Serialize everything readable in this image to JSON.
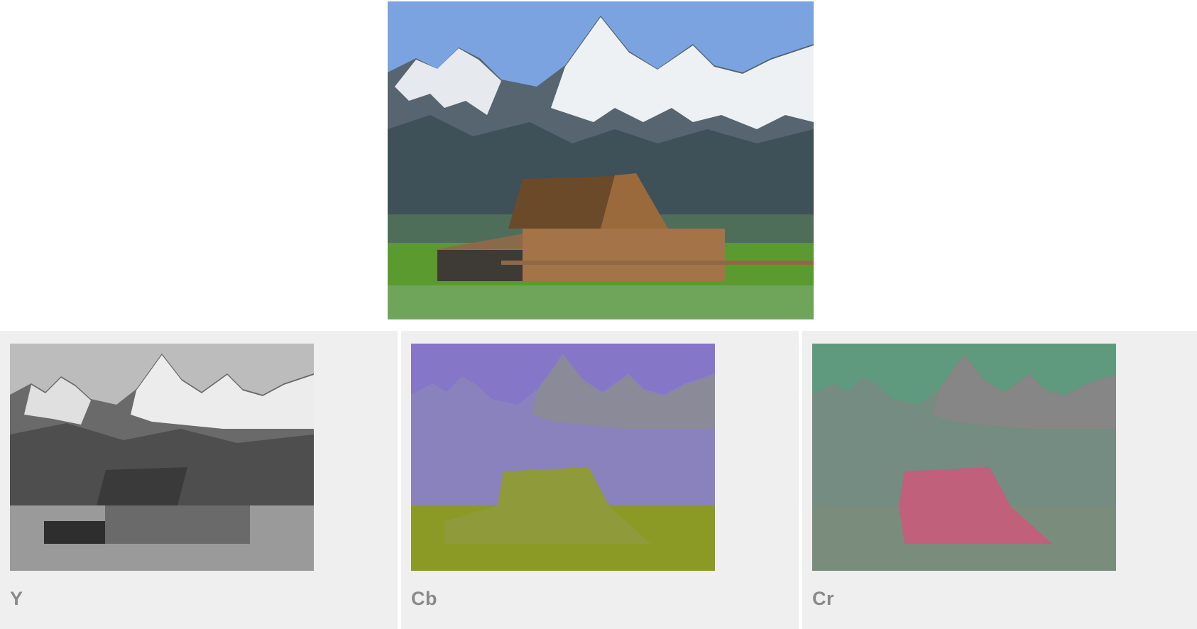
{
  "main_image": {
    "icon": "barn-mountain-photo",
    "colors": {
      "sky": "#7aa3e0",
      "mountain": "#4a5a64",
      "snow": "#e8ecef",
      "grass": "#5b9a2e",
      "barn": "#8a5a34"
    }
  },
  "channels": [
    {
      "label": "Y",
      "tint": "grayscale",
      "colors": {
        "sky": "#bcbcbc",
        "mountain": "#5a5a5a",
        "snow": "#ececec",
        "barn": "#3a3a3a",
        "ground": "#8a8a8a"
      }
    },
    {
      "label": "Cb",
      "tint": "blue-yellow",
      "colors": {
        "sky": "#8576c8",
        "mountain": "#8a80c0",
        "snow": "#8a8a9a",
        "barn": "#8f9a3a",
        "ground": "#8a9a1f"
      }
    },
    {
      "label": "Cr",
      "tint": "green-red",
      "colors": {
        "sky": "#5f9a7f",
        "mountain": "#6e8c80",
        "snow": "#868686",
        "barn": "#c0607a",
        "ground": "#7a8c7a"
      }
    }
  ]
}
